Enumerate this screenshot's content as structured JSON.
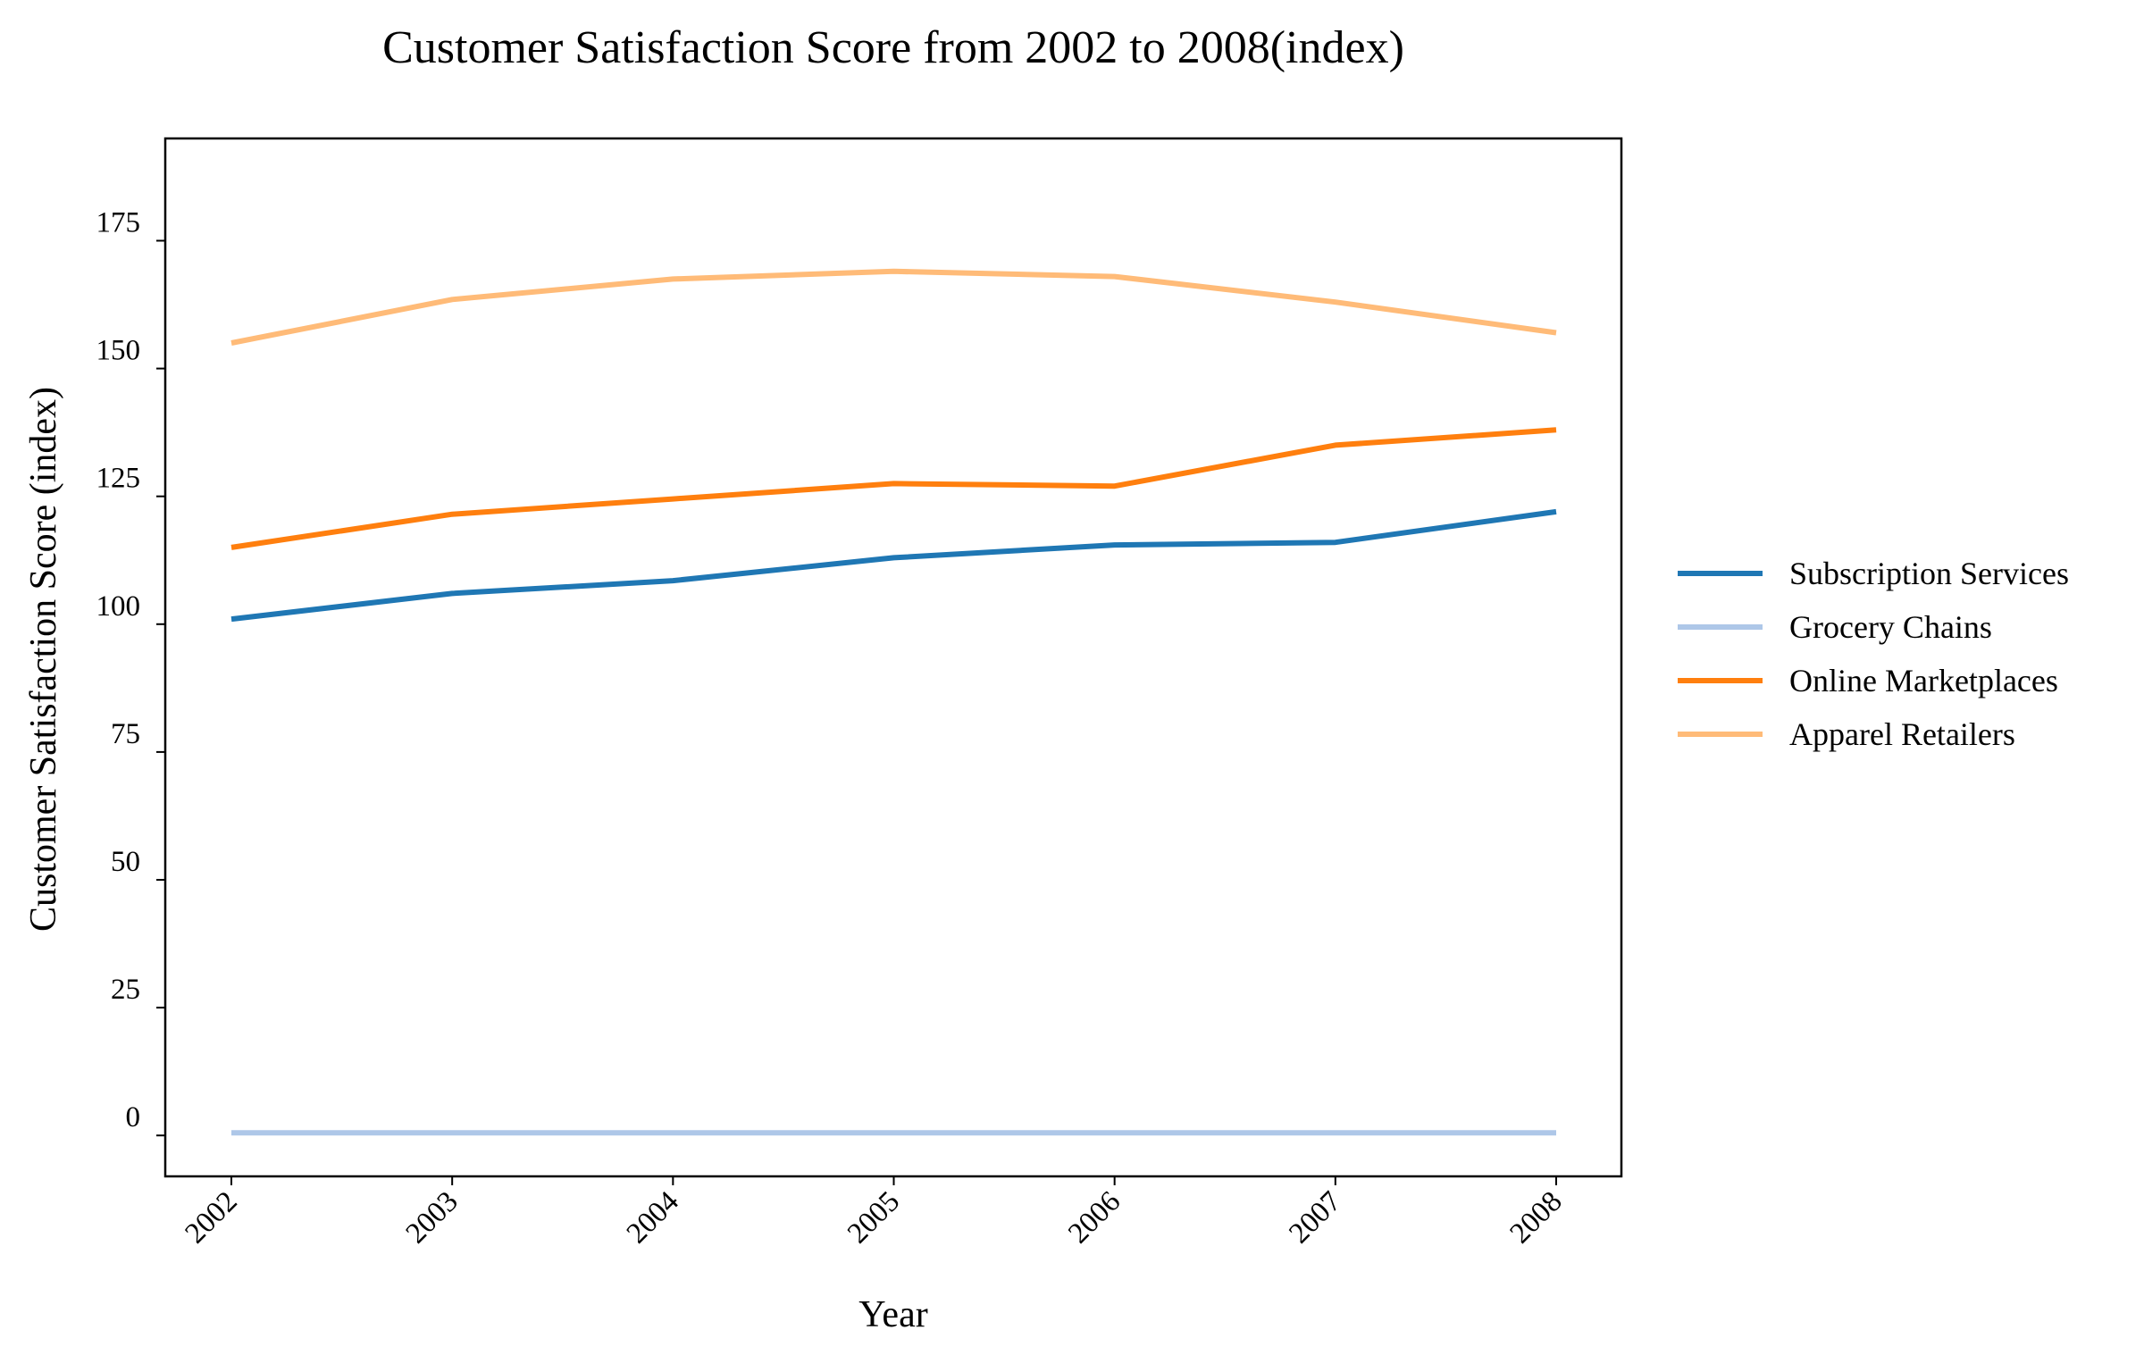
{
  "chart_data": {
    "type": "line",
    "title": "Customer Satisfaction Score from 2002 to 2008(index)",
    "xlabel": "Year",
    "ylabel": "Customer Satisfaction Score (index)",
    "x": [
      "2002",
      "2003",
      "2004",
      "2005",
      "2006",
      "2007",
      "2008"
    ],
    "yticks": [
      0,
      25,
      50,
      75,
      100,
      125,
      150,
      175
    ],
    "ylim": [
      -8,
      195
    ],
    "grid": false,
    "legend_position": "right",
    "series": [
      {
        "name": "Subscription Services",
        "color": "#1f77b4",
        "values": [
          101,
          106,
          108.5,
          113,
          115.5,
          116,
          122
        ]
      },
      {
        "name": "Grocery Chains",
        "color": "#aec7e8",
        "values": [
          0.5,
          0.5,
          0.5,
          0.5,
          0.5,
          0.5,
          0.5
        ]
      },
      {
        "name": "Online Marketplaces",
        "color": "#ff7f0e",
        "values": [
          115,
          121.5,
          124.5,
          127.5,
          127,
          135,
          138
        ]
      },
      {
        "name": "Apparel Retailers",
        "color": "#ffbb78",
        "values": [
          155,
          163.5,
          167.5,
          169,
          168,
          163,
          157
        ]
      }
    ]
  }
}
